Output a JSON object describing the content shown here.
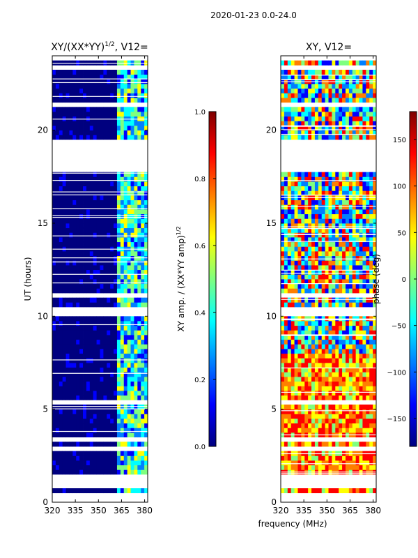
{
  "figure_title": "2020-01-23 0.0-24.0",
  "colors": {
    "jet": [
      "#00007f",
      "#0000ff",
      "#007fff",
      "#00ffff",
      "#7fff7f",
      "#ffff00",
      "#ff7f00",
      "#ff0000",
      "#7f0000"
    ]
  },
  "chart_data": [
    {
      "type": "heatmap",
      "title_main": "XY/(XX*YY)",
      "title_sup": "1/2",
      "title_tail": ", V12=",
      "xlabel": "",
      "ylabel": "UT (hours)",
      "xlim": [
        320,
        382
      ],
      "ylim": [
        0,
        24
      ],
      "xticks": [
        320,
        335,
        350,
        365,
        380
      ],
      "yticks": [
        0,
        5,
        10,
        15,
        20
      ],
      "colorbar": {
        "label_main": "XY amp. / (XX*YY amp)",
        "label_sup": "1/2",
        "range": [
          0.0,
          1.0
        ],
        "ticks": [
          "0.0",
          "0.2",
          "0.4",
          "0.6",
          "0.8",
          "1.0"
        ]
      },
      "gaps_hours": [
        [
          0,
          0.5
        ],
        [
          0.65,
          1.2
        ],
        [
          1.3,
          1.5
        ],
        [
          2.8,
          2.9
        ],
        [
          3.3,
          3.4
        ],
        [
          5.3,
          5.4
        ],
        [
          10.0,
          10.5
        ],
        [
          11.0,
          11.2
        ],
        [
          17.8,
          19.5
        ],
        [
          21.2,
          21.4
        ],
        [
          23.2,
          23.5
        ],
        [
          23.7,
          24.0
        ]
      ]
    },
    {
      "type": "heatmap",
      "title_main": "XY, V12=",
      "xlabel": "frequency (MHz)",
      "ylabel": "",
      "xlim": [
        320,
        382
      ],
      "ylim": [
        0,
        24
      ],
      "xticks": [
        320,
        335,
        350,
        365,
        380
      ],
      "yticks": [
        0,
        5,
        10,
        15,
        20
      ],
      "colorbar": {
        "label_main": "phase (deg)",
        "range": [
          -180,
          180
        ],
        "ticks": [
          "-150",
          "-100",
          "-50",
          "0",
          "50",
          "100",
          "150"
        ]
      },
      "gaps_hours": [
        [
          0,
          0.5
        ],
        [
          0.65,
          1.2
        ],
        [
          1.3,
          1.5
        ],
        [
          2.8,
          2.9
        ],
        [
          3.3,
          3.4
        ],
        [
          5.3,
          5.4
        ],
        [
          10.0,
          10.5
        ],
        [
          11.0,
          11.2
        ],
        [
          17.8,
          19.5
        ],
        [
          21.2,
          21.4
        ],
        [
          23.2,
          23.5
        ],
        [
          23.7,
          24.0
        ]
      ]
    }
  ]
}
